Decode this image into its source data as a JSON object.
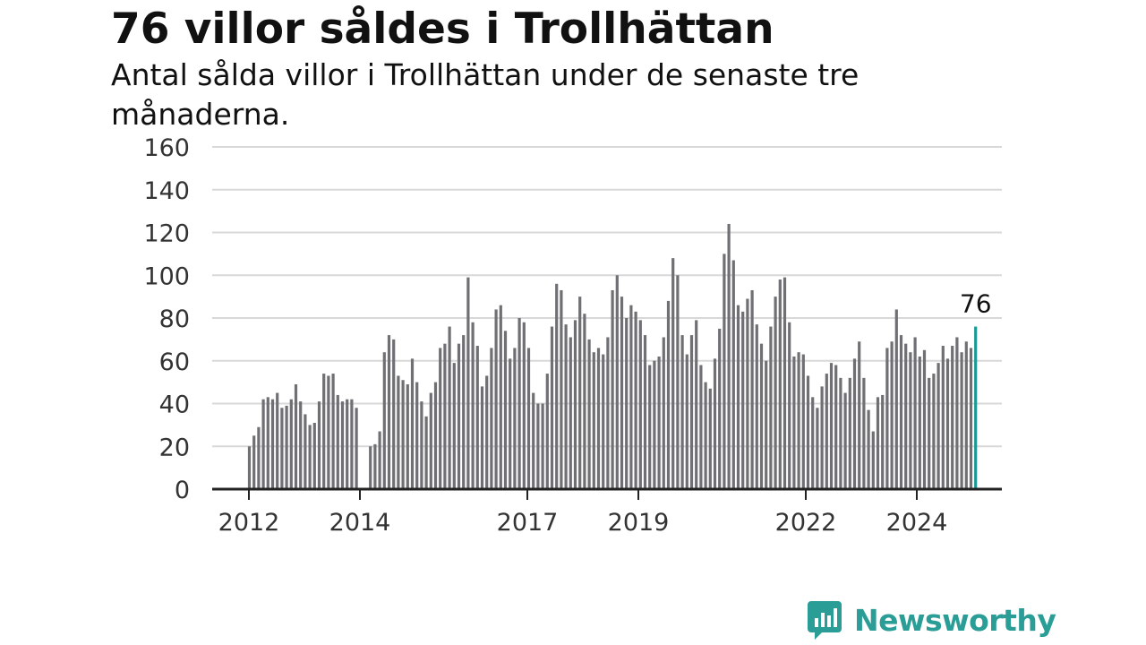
{
  "title": "76 villor såldes i Trollhättan",
  "subtitle": "Antal sålda villor i Trollhättan under de senaste tre månaderna.",
  "brand": "Newsworthy",
  "colors": {
    "bar": "#6f6f74",
    "highlight": "#1a9a95",
    "brand": "#2a9d96",
    "grid": "#d8d8d8",
    "axis": "#222222"
  },
  "chart_data": {
    "type": "bar",
    "x_tick_labels": [
      "2012",
      "2014",
      "2017",
      "2019",
      "2022",
      "2024"
    ],
    "y_ticks": [
      0,
      20,
      40,
      60,
      80,
      100,
      120,
      140,
      160
    ],
    "ylim": [
      0,
      160
    ],
    "grid": true,
    "annotation": {
      "label": "76",
      "value": 76
    },
    "values": [
      20,
      25,
      29,
      42,
      43,
      42,
      45,
      38,
      39,
      42,
      49,
      41,
      35,
      30,
      31,
      41,
      54,
      53,
      54,
      44,
      41,
      42,
      42,
      38,
      0,
      0,
      20,
      21,
      27,
      64,
      72,
      70,
      53,
      51,
      49,
      61,
      50,
      41,
      34,
      45,
      50,
      66,
      68,
      76,
      59,
      68,
      72,
      99,
      78,
      67,
      48,
      53,
      66,
      84,
      86,
      74,
      61,
      66,
      80,
      78,
      66,
      45,
      40,
      40,
      54,
      76,
      96,
      93,
      77,
      71,
      79,
      90,
      82,
      70,
      64,
      66,
      63,
      71,
      93,
      100,
      90,
      80,
      86,
      83,
      79,
      72,
      58,
      60,
      62,
      71,
      88,
      108,
      100,
      72,
      63,
      72,
      79,
      58,
      50,
      47,
      61,
      75,
      110,
      124,
      107,
      86,
      83,
      89,
      93,
      77,
      68,
      60,
      76,
      90,
      98,
      99,
      78,
      62,
      64,
      63,
      53,
      43,
      38,
      48,
      54,
      59,
      58,
      52,
      45,
      52,
      61,
      69,
      52,
      37,
      27,
      43,
      44,
      66,
      69,
      84,
      72,
      68,
      64,
      71,
      62,
      65,
      52,
      54,
      59,
      67,
      61,
      67,
      71,
      64,
      69,
      66,
      76
    ]
  }
}
